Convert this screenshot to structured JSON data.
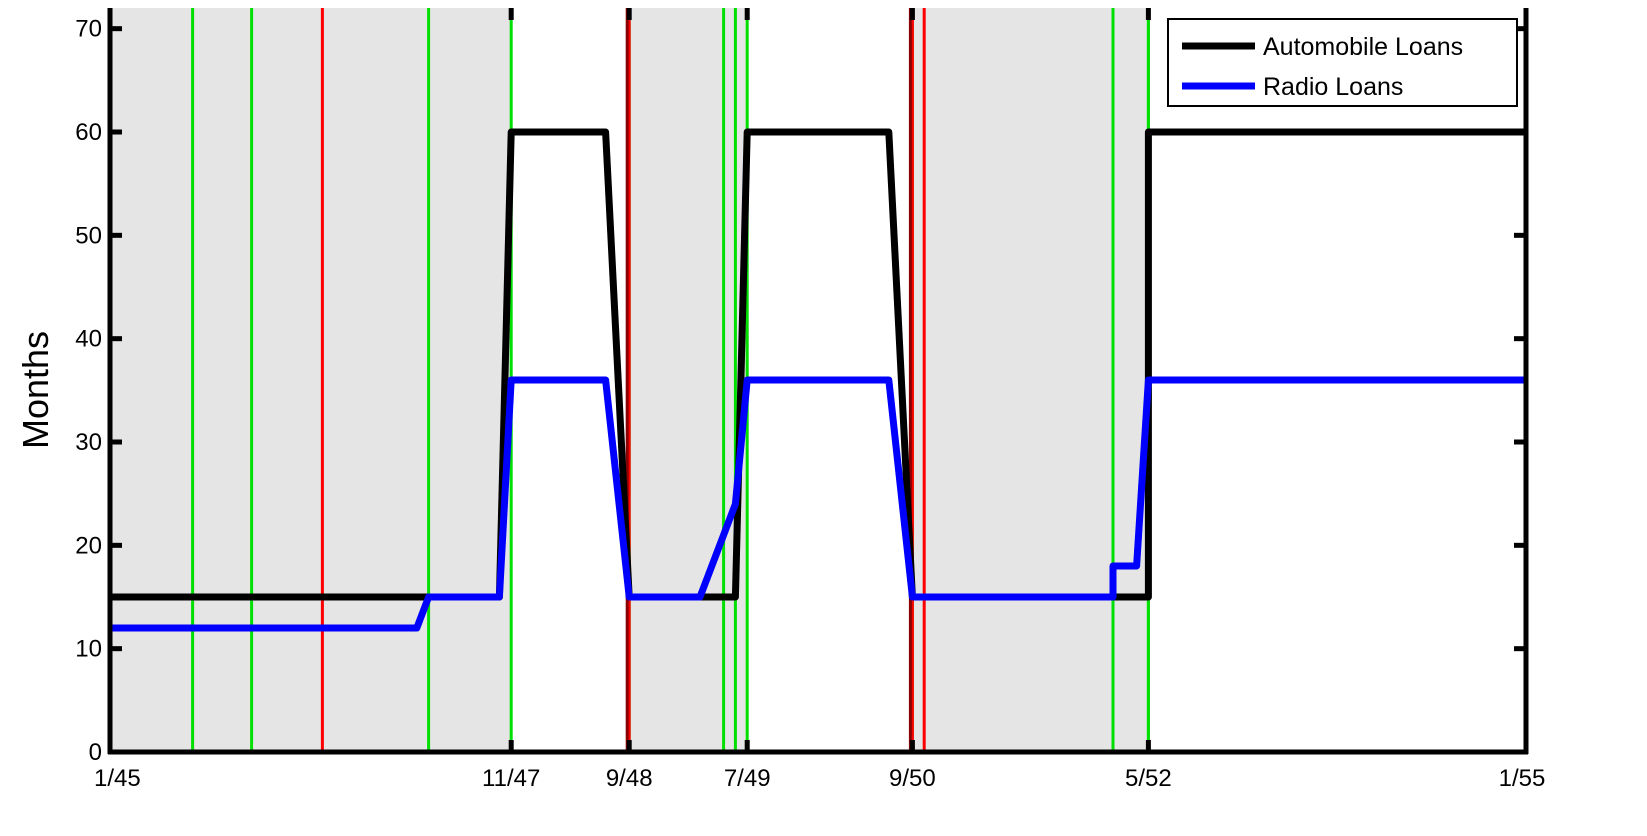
{
  "chart_data": {
    "type": "line",
    "ylabel": "Months",
    "xlabel": "",
    "title": "",
    "ylim": [
      0,
      72
    ],
    "y_ticks": [
      0,
      10,
      20,
      30,
      40,
      50,
      60,
      70
    ],
    "x_range": [
      "1/45",
      "1/55"
    ],
    "x_ticks": [
      "1/45",
      "11/47",
      "9/48",
      "7/49",
      "9/50",
      "5/52",
      "1/55"
    ],
    "legend_position": "top-right",
    "grid": false,
    "colors": {
      "automobile": "#000000",
      "radio": "#0000ff",
      "green_event": "#00e000",
      "red_event": "#ff0000",
      "dark_red_event": "#8b0000",
      "shade": "#e5e5e5"
    },
    "shaded_periods": [
      {
        "start": "1/45",
        "end": "11/47"
      },
      {
        "start": "9/48",
        "end": "7/49"
      },
      {
        "start": "9/50",
        "end": "5/52"
      }
    ],
    "green_lines": [
      "8/45",
      "1/46",
      "4/47",
      "11/47",
      "9/48",
      "5/49",
      "6/49",
      "7/49",
      "9/50",
      "2/52",
      "5/52",
      "5/52"
    ],
    "red_lines": [
      "7/46",
      "9/48",
      "9/50",
      "10/50"
    ],
    "dark_red_lines": [
      "9/48",
      "9/50"
    ],
    "series": [
      {
        "name": "Automobile Loans",
        "color": "#000000",
        "points": [
          [
            "1/45",
            15
          ],
          [
            "4/47",
            15
          ],
          [
            "10/47",
            15
          ],
          [
            "11/47",
            60
          ],
          [
            "7/48",
            60
          ],
          [
            "9/48",
            15
          ],
          [
            "6/49",
            15
          ],
          [
            "7/49",
            60
          ],
          [
            "7/50",
            60
          ],
          [
            "9/50",
            15
          ],
          [
            "5/52",
            15
          ],
          [
            "5/52",
            60
          ],
          [
            "1/55",
            60
          ]
        ]
      },
      {
        "name": "Radio Loans",
        "color": "#0000ff",
        "points": [
          [
            "1/45",
            12
          ],
          [
            "3/46",
            12
          ],
          [
            "3/47",
            12
          ],
          [
            "4/47",
            15
          ],
          [
            "10/47",
            15
          ],
          [
            "11/47",
            36
          ],
          [
            "7/48",
            36
          ],
          [
            "9/48",
            15
          ],
          [
            "3/49",
            15
          ],
          [
            "5/49",
            21
          ],
          [
            "6/49",
            24
          ],
          [
            "6/49",
            24
          ],
          [
            "7/49",
            36
          ],
          [
            "7/50",
            36
          ],
          [
            "9/50",
            15
          ],
          [
            "1/51",
            15
          ],
          [
            "2/52",
            15
          ],
          [
            "2/52",
            18
          ],
          [
            "4/52",
            18
          ],
          [
            "5/52",
            36
          ],
          [
            "1/55",
            36
          ]
        ]
      }
    ]
  }
}
